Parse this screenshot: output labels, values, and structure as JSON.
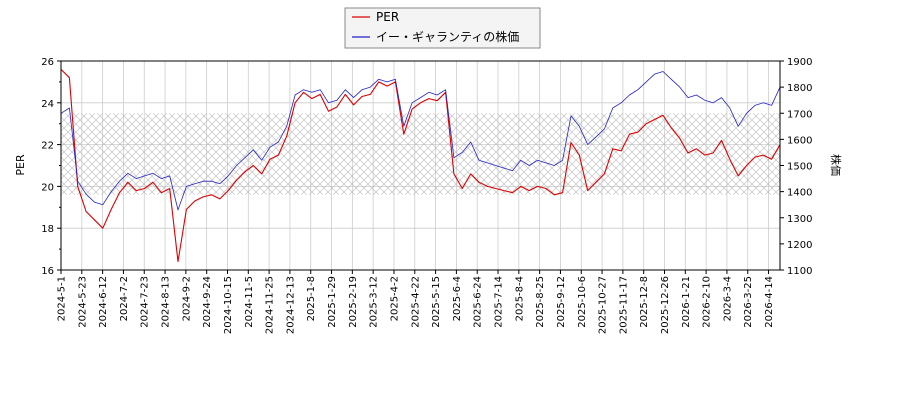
{
  "chart_data": {
    "type": "line",
    "title": "",
    "xlabel": "",
    "ylabel_left": "PER",
    "ylabel_right": "株価",
    "ylim_left": [
      16,
      26
    ],
    "ylim_right": [
      1100,
      1900
    ],
    "yticks_left": [
      "16",
      "18",
      "20",
      "22",
      "24",
      "26"
    ],
    "yticks_right": [
      "1100",
      "1200",
      "1300",
      "1400",
      "1500",
      "1600",
      "1700",
      "1800",
      "1900"
    ],
    "x_ticks": [
      "2024-5-1",
      "2024-5-23",
      "2024-6-12",
      "2024-7-2",
      "2024-7-23",
      "2024-8-13",
      "2024-9-2",
      "2024-9-24",
      "2024-10-15",
      "2024-11-5",
      "2024-11-25",
      "2024-12-13",
      "2025-1-8",
      "2025-1-29",
      "2025-2-19",
      "2025-3-12",
      "2025-4-2",
      "2025-4-22",
      "2025-5-15",
      "2025-6-4",
      "2025-6-24",
      "2025-7-14",
      "2025-8-4",
      "2025-8-25",
      "2025-9-12",
      "2025-10-6",
      "2025-10-27",
      "2025-11-17",
      "2025-12-8",
      "2025-12-26",
      "2026-1-21",
      "2026-2-10",
      "2026-3-4",
      "2026-3-25",
      "2026-4-14"
    ],
    "grid": true,
    "legend_position": "top-center",
    "shaded_band_left": [
      19.6,
      23.5
    ],
    "series": [
      {
        "name": "PER",
        "axis": "left",
        "color": "#dd0000",
        "values": [
          25.6,
          25.2,
          20.0,
          18.8,
          18.4,
          18.0,
          18.9,
          19.7,
          20.2,
          19.8,
          19.9,
          20.2,
          19.7,
          19.9,
          16.4,
          18.9,
          19.3,
          19.5,
          19.6,
          19.4,
          19.8,
          20.3,
          20.7,
          21.0,
          20.6,
          21.3,
          21.5,
          22.4,
          24.0,
          24.5,
          24.2,
          24.4,
          23.6,
          23.8,
          24.4,
          23.9,
          24.3,
          24.4,
          25.0,
          24.8,
          25.0,
          22.5,
          23.7,
          24.0,
          24.2,
          24.1,
          24.5,
          20.6,
          19.9,
          20.6,
          20.2,
          20.0,
          19.9,
          19.8,
          19.7,
          20.0,
          19.8,
          20.0,
          19.9,
          19.6,
          19.7,
          22.1,
          21.5,
          19.8,
          20.2,
          20.6,
          21.8,
          21.7,
          22.5,
          22.6,
          23.0,
          23.2,
          23.4,
          22.8,
          22.3,
          21.6,
          21.8,
          21.5,
          21.6,
          22.2,
          21.3,
          20.5,
          21.0,
          21.4,
          21.5,
          21.3,
          22.0
        ]
      },
      {
        "name": "イー・ギャランティの株価",
        "axis": "right",
        "color": "#2222cc",
        "values": [
          1700,
          1720,
          1440,
          1390,
          1360,
          1350,
          1400,
          1440,
          1470,
          1450,
          1460,
          1470,
          1450,
          1460,
          1330,
          1420,
          1430,
          1440,
          1440,
          1430,
          1460,
          1500,
          1530,
          1560,
          1520,
          1570,
          1590,
          1650,
          1770,
          1790,
          1780,
          1790,
          1740,
          1750,
          1790,
          1760,
          1790,
          1800,
          1830,
          1820,
          1830,
          1650,
          1740,
          1760,
          1780,
          1770,
          1790,
          1530,
          1550,
          1590,
          1520,
          1510,
          1500,
          1490,
          1480,
          1520,
          1500,
          1520,
          1510,
          1500,
          1520,
          1690,
          1650,
          1580,
          1610,
          1640,
          1720,
          1740,
          1770,
          1790,
          1820,
          1850,
          1860,
          1830,
          1800,
          1760,
          1770,
          1750,
          1740,
          1760,
          1720,
          1650,
          1700,
          1730,
          1740,
          1730,
          1800
        ]
      }
    ]
  }
}
